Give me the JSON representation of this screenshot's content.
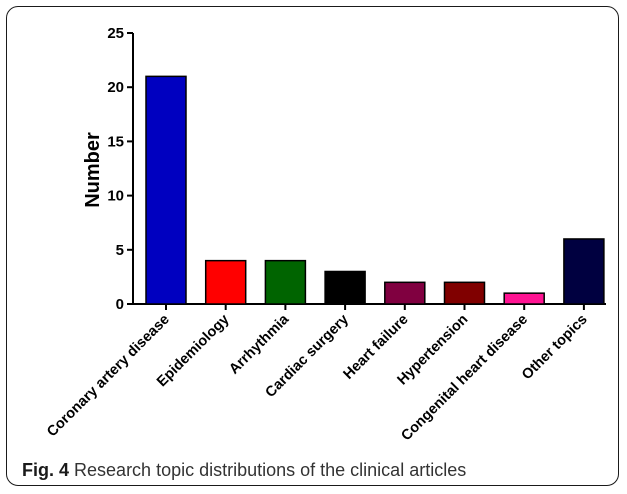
{
  "caption": {
    "figure_label": "Fig. 4",
    "text": "Research topic distributions of the clinical articles"
  },
  "chart_data": {
    "type": "bar",
    "title": "",
    "xlabel": "",
    "ylabel": "Number",
    "ylim": [
      0,
      25
    ],
    "yticks": [
      0,
      5,
      10,
      15,
      20,
      25
    ],
    "grid": false,
    "categories": [
      "Coronary artery disease",
      "Epidemiology",
      "Arrhythmia",
      "Cardiac surgery",
      "Heart failure",
      "Hypertension",
      "Congenital heart disease",
      "Other topics"
    ],
    "values": [
      21,
      4,
      4,
      3,
      2,
      2,
      1,
      6
    ],
    "colors": [
      "#0000c0",
      "#ff0000",
      "#006400",
      "#000000",
      "#800040",
      "#800000",
      "#ff1493",
      "#000040"
    ]
  }
}
